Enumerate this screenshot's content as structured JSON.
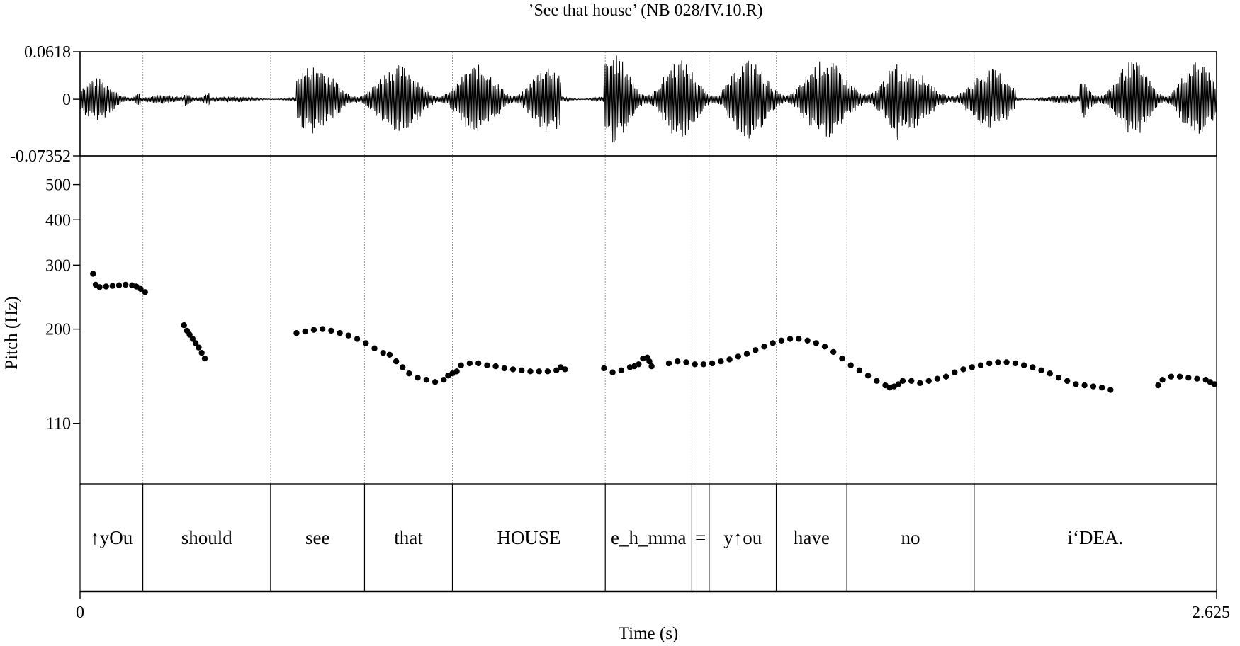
{
  "chart_data": [
    {
      "type": "line",
      "title": "’See that house’ (NB 028/IV.10.R)",
      "panel": "waveform",
      "xlabel": "Time (s)",
      "xlim": [
        0,
        2.625
      ],
      "x_tick_labels": [
        "0",
        "2.625"
      ],
      "ylim": [
        -0.07352,
        0.0618
      ],
      "y_tick_labels": [
        "0.0618",
        "0",
        "-0.07352"
      ],
      "segments_amplitude": [
        {
          "t0": 0.0,
          "t1": 0.14,
          "amp": 0.028
        },
        {
          "t0": 0.14,
          "t1": 0.24,
          "amp": 0.006
        },
        {
          "t0": 0.24,
          "t1": 0.3,
          "amp": 0.028
        },
        {
          "t0": 0.3,
          "t1": 0.5,
          "amp": 0.004
        },
        {
          "t0": 0.5,
          "t1": 1.11,
          "amp": 0.045
        },
        {
          "t0": 1.11,
          "t1": 1.21,
          "amp": 0.005
        },
        {
          "t0": 1.21,
          "t1": 1.32,
          "amp": 0.058
        },
        {
          "t0": 1.32,
          "t1": 1.78,
          "amp": 0.052
        },
        {
          "t0": 1.78,
          "t1": 1.89,
          "amp": 0.062
        },
        {
          "t0": 1.89,
          "t1": 2.16,
          "amp": 0.04
        },
        {
          "t0": 2.16,
          "t1": 2.31,
          "amp": 0.006
        },
        {
          "t0": 2.31,
          "t1": 2.625,
          "amp": 0.05
        }
      ]
    },
    {
      "type": "scatter",
      "panel": "pitch",
      "ylabel": "Pitch (Hz)",
      "yscale": "log",
      "ylim": [
        75,
        600
      ],
      "y_ticks": [
        110,
        200,
        300,
        400,
        500
      ],
      "y_tick_labels": [
        "110",
        "200",
        "300",
        "400",
        "500"
      ],
      "xlim": [
        0,
        2.625
      ],
      "contours": [
        [
          [
            0.03,
            284
          ],
          [
            0.036,
            265
          ],
          [
            0.045,
            261
          ],
          [
            0.06,
            262
          ],
          [
            0.075,
            263
          ],
          [
            0.09,
            264
          ],
          [
            0.105,
            265
          ],
          [
            0.12,
            264
          ],
          [
            0.13,
            262
          ],
          [
            0.14,
            258
          ],
          [
            0.15,
            253
          ]
        ],
        [
          [
            0.24,
            205
          ],
          [
            0.247,
            198
          ],
          [
            0.253,
            193
          ],
          [
            0.26,
            188
          ],
          [
            0.267,
            183
          ],
          [
            0.274,
            178
          ],
          [
            0.281,
            172
          ],
          [
            0.288,
            166
          ]
        ],
        [
          [
            0.5,
            195
          ],
          [
            0.52,
            197
          ],
          [
            0.54,
            199
          ],
          [
            0.56,
            200
          ],
          [
            0.58,
            198
          ],
          [
            0.6,
            195
          ],
          [
            0.62,
            192
          ],
          [
            0.64,
            188
          ],
          [
            0.66,
            183
          ],
          [
            0.68,
            177
          ],
          [
            0.7,
            172
          ],
          [
            0.715,
            170
          ],
          [
            0.73,
            163
          ],
          [
            0.745,
            157
          ],
          [
            0.76,
            151
          ],
          [
            0.78,
            147
          ],
          [
            0.8,
            145
          ],
          [
            0.82,
            143
          ],
          [
            0.84,
            145
          ],
          [
            0.85,
            149
          ],
          [
            0.86,
            151
          ],
          [
            0.87,
            153
          ]
        ],
        [
          [
            0.88,
            159
          ],
          [
            0.9,
            161
          ],
          [
            0.92,
            161
          ],
          [
            0.94,
            159
          ],
          [
            0.96,
            158
          ],
          [
            0.98,
            156
          ],
          [
            1.0,
            155
          ],
          [
            1.02,
            154
          ],
          [
            1.04,
            153
          ],
          [
            1.06,
            153
          ],
          [
            1.08,
            153
          ],
          [
            1.1,
            154
          ],
          [
            1.11,
            157
          ],
          [
            1.12,
            155
          ]
        ],
        [
          [
            1.21,
            156
          ],
          [
            1.23,
            152
          ],
          [
            1.25,
            154
          ],
          [
            1.27,
            157
          ],
          [
            1.28,
            158
          ],
          [
            1.29,
            160
          ],
          [
            1.3,
            166
          ],
          [
            1.31,
            167
          ],
          [
            1.315,
            163
          ],
          [
            1.32,
            158
          ]
        ],
        [
          [
            1.36,
            161
          ],
          [
            1.38,
            163
          ],
          [
            1.4,
            162
          ],
          [
            1.42,
            160
          ],
          [
            1.44,
            160
          ],
          [
            1.46,
            161
          ],
          [
            1.48,
            163
          ],
          [
            1.5,
            165
          ],
          [
            1.52,
            168
          ],
          [
            1.54,
            171
          ],
          [
            1.56,
            175
          ],
          [
            1.58,
            179
          ],
          [
            1.6,
            183
          ],
          [
            1.62,
            186
          ],
          [
            1.64,
            188
          ],
          [
            1.66,
            188
          ],
          [
            1.68,
            186
          ],
          [
            1.7,
            183
          ],
          [
            1.72,
            179
          ],
          [
            1.74,
            173
          ],
          [
            1.76,
            166
          ],
          [
            1.78,
            159
          ],
          [
            1.8,
            154
          ],
          [
            1.82,
            149
          ],
          [
            1.84,
            144
          ],
          [
            1.86,
            140
          ],
          [
            1.87,
            138
          ],
          [
            1.88,
            139
          ]
        ],
        [
          [
            1.89,
            141
          ],
          [
            1.9,
            144
          ],
          [
            1.92,
            144
          ],
          [
            1.94,
            142
          ],
          [
            1.96,
            144
          ],
          [
            1.98,
            146
          ],
          [
            2.0,
            148
          ],
          [
            2.02,
            152
          ],
          [
            2.04,
            155
          ],
          [
            2.06,
            157
          ],
          [
            2.08,
            159
          ],
          [
            2.1,
            161
          ],
          [
            2.12,
            162
          ],
          [
            2.14,
            162
          ],
          [
            2.16,
            161
          ],
          [
            2.18,
            159
          ],
          [
            2.2,
            157
          ],
          [
            2.22,
            154
          ],
          [
            2.24,
            151
          ],
          [
            2.26,
            147
          ],
          [
            2.28,
            144
          ],
          [
            2.3,
            141
          ],
          [
            2.32,
            140
          ],
          [
            2.34,
            139
          ],
          [
            2.36,
            138
          ],
          [
            2.38,
            136
          ]
        ],
        [
          [
            2.49,
            140
          ],
          [
            2.5,
            145
          ],
          [
            2.52,
            148
          ],
          [
            2.54,
            148
          ],
          [
            2.56,
            147
          ],
          [
            2.58,
            146
          ],
          [
            2.6,
            145
          ],
          [
            2.61,
            143
          ],
          [
            2.62,
            141
          ]
        ]
      ]
    },
    {
      "type": "table",
      "panel": "transcription",
      "intervals": [
        {
          "label": "↑yOu",
          "t0": 0.0,
          "t1": 0.145
        },
        {
          "label": "should",
          "t0": 0.145,
          "t1": 0.44
        },
        {
          "label": "see",
          "t0": 0.44,
          "t1": 0.657
        },
        {
          "label": "that",
          "t0": 0.657,
          "t1": 0.86
        },
        {
          "label": "HOUSE",
          "t0": 0.86,
          "t1": 1.213
        },
        {
          "label": "e_h_mma",
          "t0": 1.213,
          "t1": 1.413
        },
        {
          "label": "=",
          "t0": 1.413,
          "t1": 1.453
        },
        {
          "label": "y↑ou",
          "t0": 1.453,
          "t1": 1.608
        },
        {
          "label": "have",
          "t0": 1.608,
          "t1": 1.771
        },
        {
          "label": "no",
          "t0": 1.771,
          "t1": 2.065
        },
        {
          "label": "i‘DEA.",
          "t0": 2.065,
          "t1": 2.625
        }
      ]
    }
  ]
}
